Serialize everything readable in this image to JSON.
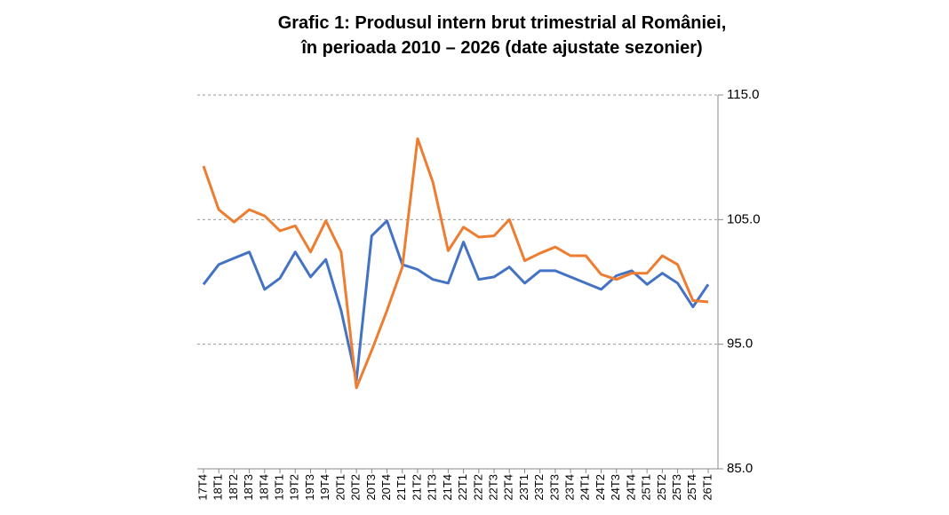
{
  "chart_data": {
    "type": "line",
    "title": "Grafic 1: Produsul intern brut trimestrial al României,",
    "subtitle": "în perioada 2010 – 2026 (date ajustate sezonier)",
    "categories": [
      "17T4",
      "18T1",
      "18T2",
      "18T3",
      "18T4",
      "19T1",
      "19T2",
      "19T3",
      "19T4",
      "20T1",
      "20T2",
      "20T3",
      "20T4",
      "21T1",
      "21T2",
      "21T3",
      "21T4",
      "22T1",
      "22T2",
      "22T3",
      "22T4",
      "23T1",
      "23T2",
      "23T3",
      "23T4",
      "24T1",
      "24T2",
      "24T3",
      "24T4",
      "25T1",
      "25T2",
      "25T3",
      "25T4",
      "26T1"
    ],
    "series": [
      {
        "color": "#4472c4",
        "values": [
          99.8,
          101.4,
          101.9,
          102.4,
          99.4,
          100.3,
          102.4,
          100.4,
          101.8,
          97.7,
          92.1,
          103.7,
          104.9,
          101.4,
          101.0,
          100.2,
          99.9,
          103.2,
          100.2,
          100.4,
          101.2,
          99.9,
          100.9,
          100.9,
          100.4,
          99.9,
          99.4,
          100.5,
          100.9,
          99.8,
          100.7,
          99.9,
          98.0,
          99.8
        ]
      },
      {
        "color": "#ed7d31",
        "values": [
          109.3,
          105.8,
          104.8,
          105.8,
          105.3,
          104.1,
          104.5,
          102.4,
          104.9,
          102.4,
          91.5,
          94.5,
          97.7,
          101.2,
          111.5,
          108.0,
          102.5,
          104.4,
          103.6,
          103.7,
          105.0,
          101.7,
          102.3,
          102.8,
          102.1,
          102.1,
          100.6,
          100.2,
          100.7,
          100.7,
          102.1,
          101.4,
          98.5,
          98.4
        ]
      }
    ],
    "ylim": [
      85,
      115
    ],
    "yticks": [
      {
        "value": 85,
        "label": "85.0"
      },
      {
        "value": 95,
        "label": "95.0"
      },
      {
        "value": 105,
        "label": "105.0"
      },
      {
        "value": 115,
        "label": "115.0"
      }
    ],
    "grid": true
  }
}
